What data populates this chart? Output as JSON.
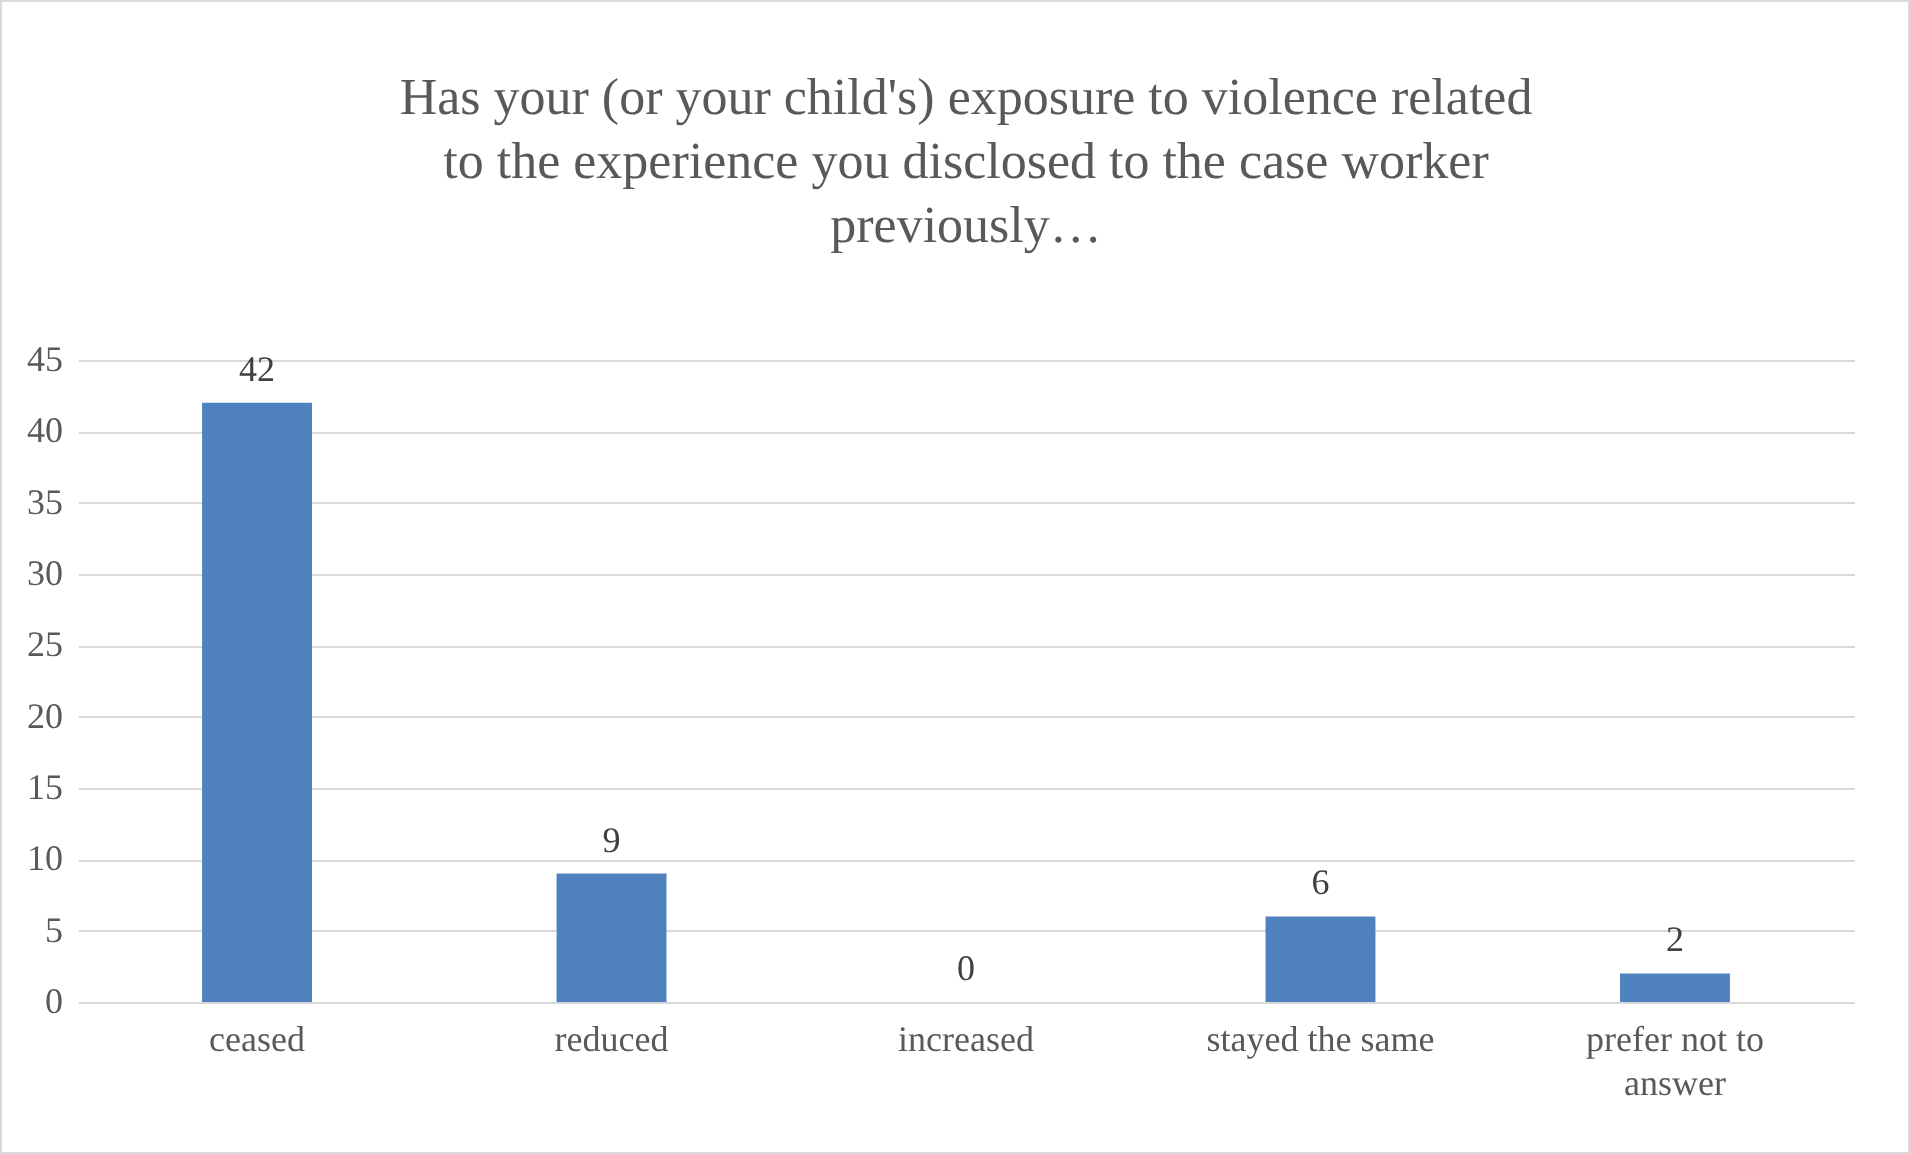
{
  "chart_data": {
    "type": "bar",
    "title": "Has your (or your child's) exposure to violence related to the experience you disclosed to the case worker previously…",
    "categories": [
      "ceased",
      "reduced",
      "increased",
      "stayed the same",
      "prefer not to answer"
    ],
    "values": [
      42,
      9,
      0,
      6,
      2
    ],
    "color": "#4e81bd",
    "ylim": [
      0,
      45
    ],
    "yticks": [
      0,
      5,
      10,
      15,
      20,
      25,
      30,
      35,
      40,
      45
    ],
    "grid": "y",
    "data_labels": true
  }
}
